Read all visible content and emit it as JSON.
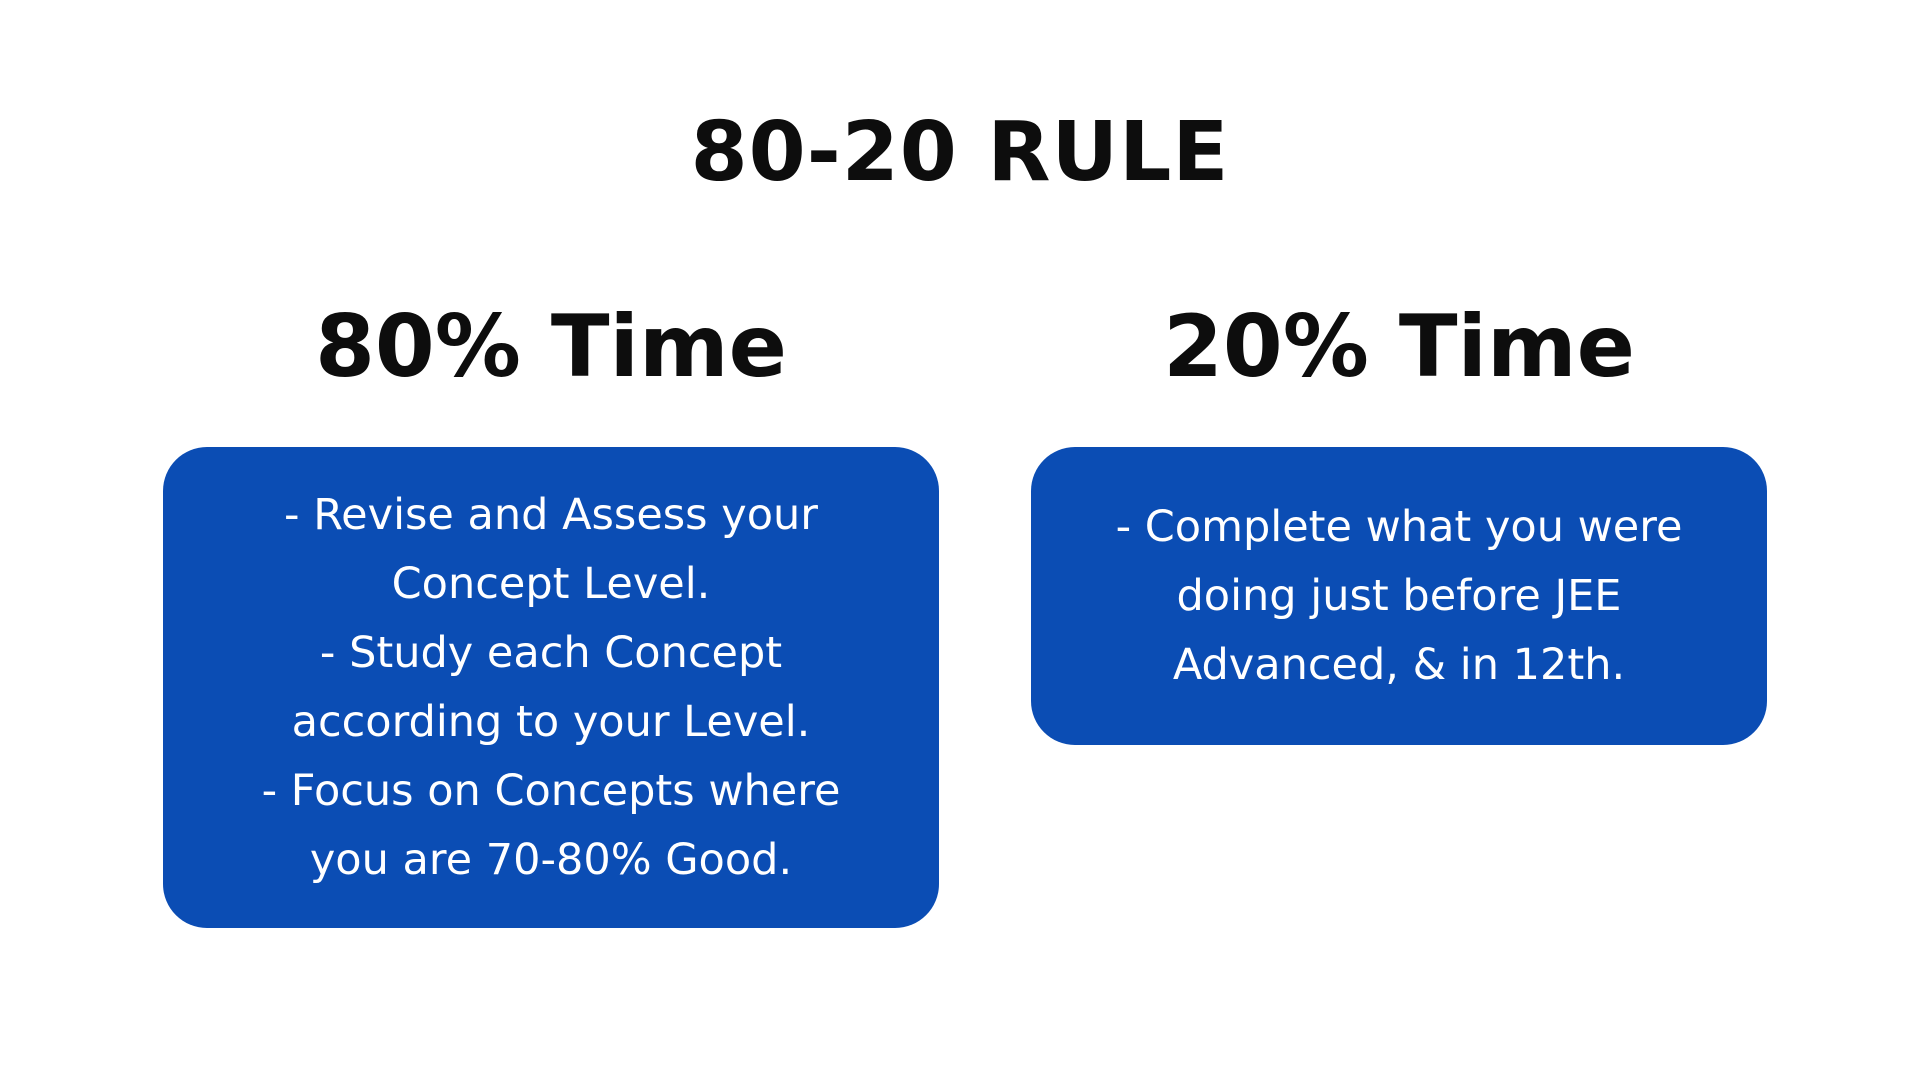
{
  "slide": {
    "title": "80-20 RULE",
    "columns": [
      {
        "heading": "80% Time",
        "lines": [
          "- Revise and Assess your",
          "Concept Level.",
          "- Study each Concept",
          "according to your Level.",
          "- Focus on Concepts where",
          "you are 70-80% Good."
        ]
      },
      {
        "heading": "20% Time",
        "lines": [
          "- Complete what you were",
          "doing just before JEE",
          "Advanced, & in 12th."
        ]
      }
    ]
  },
  "colors": {
    "card_background": "#0b4db4",
    "card_text": "#ffffff",
    "heading_text": "#0d0d0d",
    "page_background": "#ffffff"
  }
}
